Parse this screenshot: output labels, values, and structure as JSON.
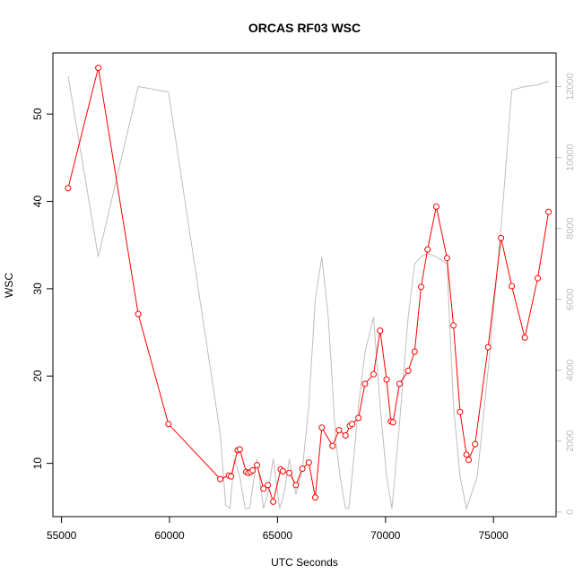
{
  "chart_data": {
    "type": "line",
    "title": "ORCAS RF03 WSC",
    "xlabel": "UTC Seconds",
    "ylabel": "WSC",
    "xlim": [
      54600,
      77900
    ],
    "ylim": [
      3.9,
      57.0
    ],
    "y2lim": [
      -130,
      12950
    ],
    "x_ticks": [
      55000,
      60000,
      65000,
      70000,
      75000
    ],
    "y_ticks": [
      10,
      20,
      30,
      40,
      50
    ],
    "y2_ticks": [
      0,
      2000,
      4000,
      6000,
      8000,
      10000,
      12000
    ],
    "colors": {
      "wsc": "#ff0000",
      "altitude": "#bebebe"
    },
    "series": [
      {
        "name": "",
        "axis": "left",
        "style": "line-points",
        "x": [
          55300,
          56700,
          58550,
          59950,
          62350,
          62750,
          62850,
          63150,
          63250,
          63550,
          63650,
          63750,
          63850,
          64050,
          64350,
          64550,
          64800,
          65150,
          65250,
          65550,
          65850,
          66150,
          66450,
          66750,
          67050,
          67550,
          67850,
          68150,
          68350,
          68450,
          68750,
          69050,
          69450,
          69750,
          70050,
          70250,
          70350,
          70650,
          71050,
          71350,
          71650,
          71950,
          72350,
          72850,
          73150,
          73450,
          73750,
          73850,
          74150,
          74750,
          75350,
          75850,
          76450,
          77050,
          77550
        ],
        "y": [
          41.5,
          55.3,
          27.1,
          14.5,
          8.2,
          8.6,
          8.5,
          11.5,
          11.6,
          9.0,
          8.9,
          9.0,
          9.2,
          9.8,
          7.1,
          7.5,
          5.6,
          9.3,
          9.1,
          8.9,
          7.5,
          9.4,
          10.1,
          6.1,
          14.1,
          12.0,
          13.8,
          13.2,
          14.3,
          14.5,
          15.2,
          19.1,
          20.2,
          25.2,
          19.6,
          14.8,
          14.7,
          19.1,
          20.6,
          22.8,
          30.2,
          34.5,
          39.4,
          33.5,
          25.8,
          15.9,
          11.0,
          10.4,
          12.2,
          23.3,
          35.8,
          30.3,
          24.4,
          31.2,
          38.8
        ]
      },
      {
        "name": "",
        "axis": "right",
        "style": "line",
        "x": [
          55300,
          56700,
          58550,
          59950,
          62350,
          62600,
          62800,
          63000,
          63250,
          63500,
          63700,
          64050,
          64350,
          64550,
          64800,
          65100,
          65300,
          65550,
          65850,
          66150,
          66450,
          66750,
          67050,
          67350,
          67700,
          67900,
          68150,
          68300,
          68450,
          68750,
          69050,
          69450,
          69750,
          70050,
          70300,
          70650,
          71050,
          71350,
          71650,
          71950,
          72350,
          72850,
          73150,
          73450,
          73750,
          74250,
          74750,
          75350,
          75850,
          76450,
          77050,
          77550
        ],
        "y": [
          12300,
          7200,
          12000,
          11850,
          2200,
          200,
          100,
          1500,
          1000,
          100,
          100,
          1500,
          100,
          500,
          1500,
          100,
          500,
          1500,
          500,
          1200,
          3000,
          6000,
          7200,
          5500,
          2000,
          1000,
          100,
          100,
          1000,
          3000,
          4500,
          5500,
          3000,
          1000,
          100,
          2500,
          5500,
          7000,
          7200,
          7300,
          7200,
          7000,
          3000,
          1000,
          100,
          1000,
          4000,
          8000,
          11900,
          12000,
          12050,
          12150
        ]
      }
    ]
  }
}
